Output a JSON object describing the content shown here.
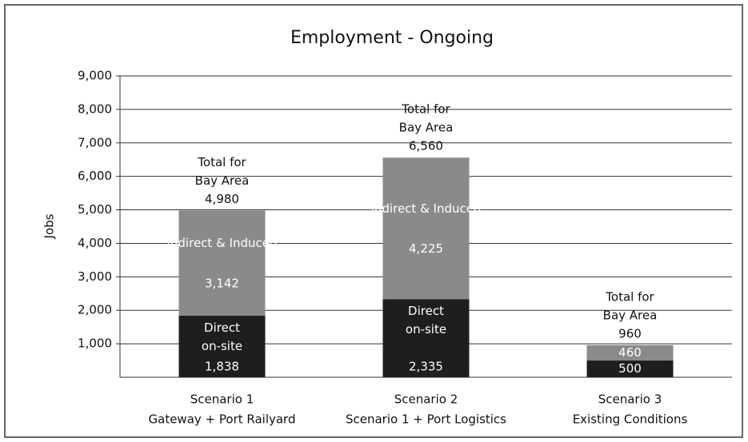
{
  "chart_data": {
    "type": "stacked_bar",
    "title": "Employment - Ongoing",
    "y_label": "Jobs",
    "categories": [
      [
        "Scenario 1",
        "Gateway + Port Railyard"
      ],
      [
        "Scenario 2",
        "Scenario 1 + Port Logistics"
      ],
      [
        "Scenario 3",
        "Existing Conditions"
      ]
    ],
    "series": [
      {
        "name": "Direct on-site",
        "color": "#1e1e1e",
        "values": [
          1838,
          2335,
          500
        ],
        "value_labels": [
          "1,838",
          "2,335",
          "500"
        ]
      },
      {
        "name": "Indirect & Induced",
        "color": "#8a8a8a",
        "values": [
          3142,
          4225,
          460
        ],
        "value_labels": [
          "3,142",
          "4,225",
          "460"
        ]
      }
    ],
    "total_caption": [
      "Total for",
      "Bay Area"
    ],
    "totals": [
      4980,
      6560,
      960
    ],
    "total_labels": [
      "4,980",
      "6,560",
      "960"
    ],
    "ylim": [
      0,
      9000
    ],
    "yticks": [
      {
        "value": 1000,
        "label": "1,000"
      },
      {
        "value": 2000,
        "label": "2,000"
      },
      {
        "value": 3000,
        "label": "3,000"
      },
      {
        "value": 4000,
        "label": "4,000"
      },
      {
        "value": 5000,
        "label": "5,000"
      },
      {
        "value": 6000,
        "label": "6,000"
      },
      {
        "value": 7000,
        "label": "7,000"
      },
      {
        "value": 8000,
        "label": "8,000"
      },
      {
        "value": 9000,
        "label": "9,000"
      }
    ],
    "grid": true
  }
}
